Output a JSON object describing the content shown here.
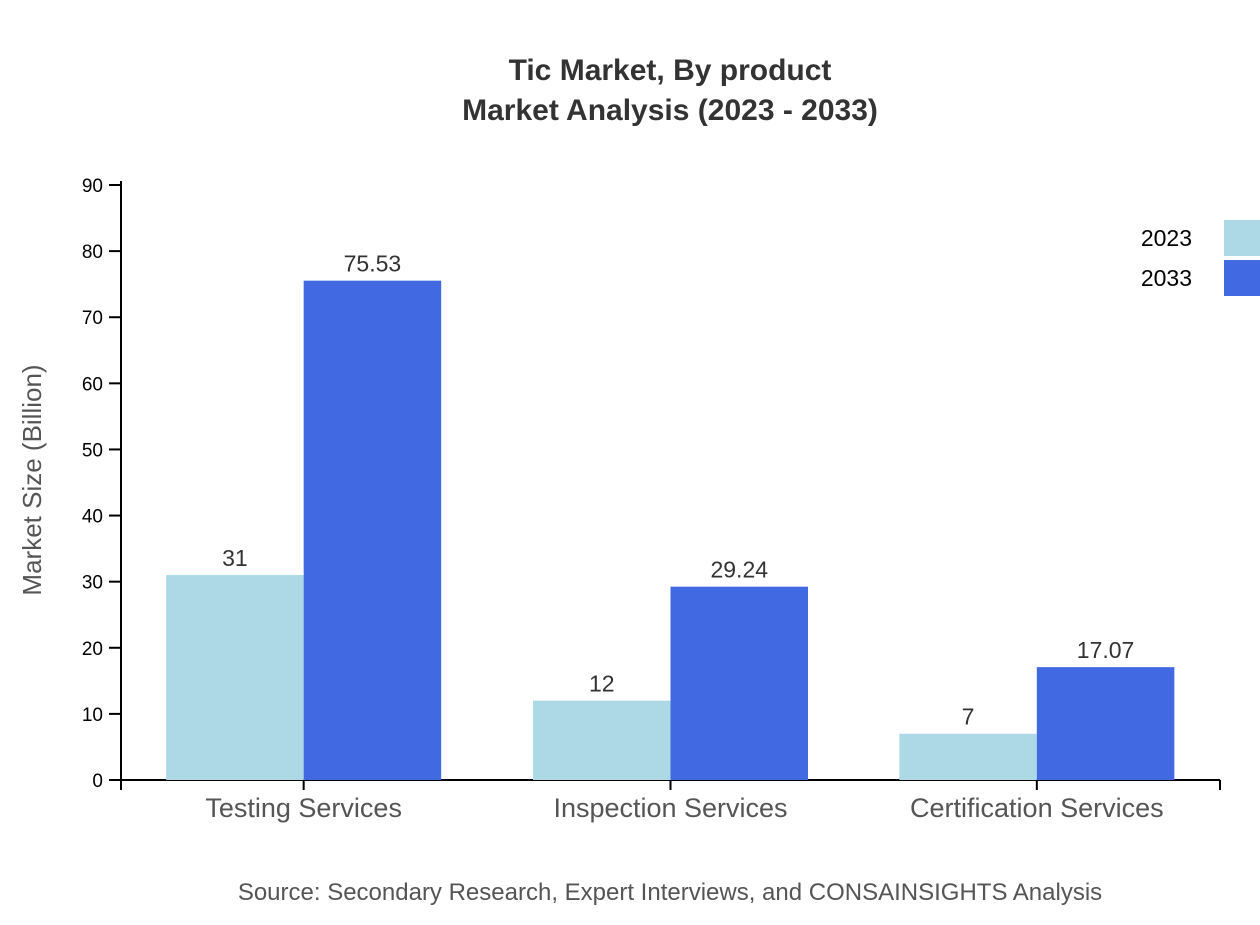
{
  "chart_data": {
    "type": "bar",
    "title": "Tic Market, By product",
    "subtitle": "Market Analysis (2023 - 2033)",
    "xlabel": "",
    "ylabel": "Market Size (Billion)",
    "ylim": [
      0,
      90
    ],
    "yticks": [
      0,
      10,
      20,
      30,
      40,
      50,
      60,
      70,
      80,
      90
    ],
    "categories": [
      "Testing Services",
      "Inspection Services",
      "Certification Services"
    ],
    "series": [
      {
        "name": "2023",
        "color": "#ADD8E6",
        "values": [
          31,
          12,
          7
        ],
        "labels": [
          "31",
          "12",
          "7"
        ]
      },
      {
        "name": "2033",
        "color": "#4169E1",
        "values": [
          75.53,
          29.24,
          17.07
        ],
        "labels": [
          "75.53",
          "29.24",
          "17.07"
        ]
      }
    ],
    "legend_position": "top-right",
    "grid": false,
    "source": "Source: Secondary Research, Expert Interviews, and CONSAINSIGHTS Analysis"
  }
}
